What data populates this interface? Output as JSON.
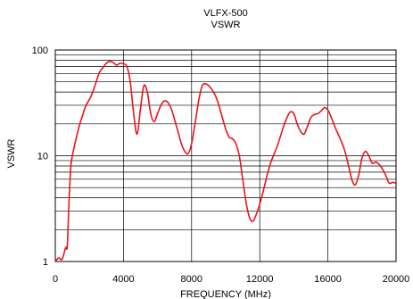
{
  "chart_data": {
    "type": "line",
    "title": "VLFX-500",
    "subtitle": "VSWR",
    "xlabel": "FREQUENCY (MHz)",
    "ylabel": "VSWR",
    "xlim": [
      0,
      20000
    ],
    "ylim": [
      1,
      100
    ],
    "y_scale": "log",
    "grid": true,
    "legend": "none",
    "x_ticks": [
      {
        "value": 0,
        "label": "0"
      },
      {
        "value": 4000,
        "label": "4000"
      },
      {
        "value": 8000,
        "label": "8000"
      },
      {
        "value": 12000,
        "label": "12000"
      },
      {
        "value": 16000,
        "label": "16000"
      },
      {
        "value": 20000,
        "label": "20000"
      }
    ],
    "y_ticks": [
      {
        "value": 1,
        "label": "1"
      },
      {
        "value": 10,
        "label": "10"
      },
      {
        "value": 100,
        "label": "100"
      }
    ],
    "colors": {
      "series": "#e8141c",
      "axis": "#000000",
      "grid": "#000000"
    },
    "series": [
      {
        "x": [
          0,
          200,
          400,
          600,
          700,
          800,
          900,
          1000,
          1200,
          1400,
          1600,
          1800,
          2000,
          2200,
          2400,
          2600,
          2800,
          3000,
          3200,
          3400,
          3600,
          3800,
          4000,
          4200,
          4400,
          4600,
          4800,
          5000,
          5200,
          5400,
          5600,
          5800,
          6000,
          6200,
          6400,
          6600,
          6800,
          7000,
          7200,
          7400,
          7600,
          7800,
          8000,
          8200,
          8400,
          8600,
          8800,
          9000,
          9200,
          9400,
          9600,
          9800,
          10000,
          10200,
          10400,
          10600,
          10800,
          11000,
          11200,
          11400,
          11600,
          11800,
          12000,
          12200,
          12400,
          12600,
          12800,
          13000,
          13200,
          13400,
          13600,
          13800,
          14000,
          14200,
          14400,
          14600,
          14800,
          15000,
          15200,
          15400,
          15600,
          15800,
          16000,
          16200,
          16400,
          16600,
          16800,
          17000,
          17200,
          17400,
          17600,
          17800,
          18000,
          18200,
          18400,
          18600,
          18800,
          19000,
          19200,
          19400,
          19600,
          19800,
          20000
        ],
        "values": [
          1.0,
          1.08,
          1.05,
          1.35,
          1.4,
          3.5,
          7.5,
          10,
          14,
          19,
          24,
          30,
          34,
          40,
          50,
          62,
          68,
          75,
          78,
          76,
          72,
          75,
          74,
          70,
          50,
          25,
          16,
          28,
          46,
          40,
          25,
          21,
          25,
          30,
          33,
          32,
          28,
          22,
          17,
          13,
          11,
          10.5,
          13,
          20,
          32,
          45,
          48,
          46,
          42,
          37,
          30,
          23,
          18,
          15,
          14.5,
          13,
          10,
          6,
          3.6,
          2.6,
          2.4,
          2.8,
          3.5,
          4.6,
          6.2,
          8.2,
          10,
          12,
          15,
          19,
          23,
          26,
          25,
          20,
          17,
          16,
          19,
          23,
          24.5,
          25,
          26.5,
          28.5,
          27,
          23,
          19,
          16,
          13.5,
          11,
          8.2,
          6,
          5.3,
          6.5,
          9.5,
          11,
          10,
          8.5,
          8.7,
          8.3,
          7.5,
          6.5,
          5.5,
          5.6,
          5.5
        ]
      }
    ]
  }
}
